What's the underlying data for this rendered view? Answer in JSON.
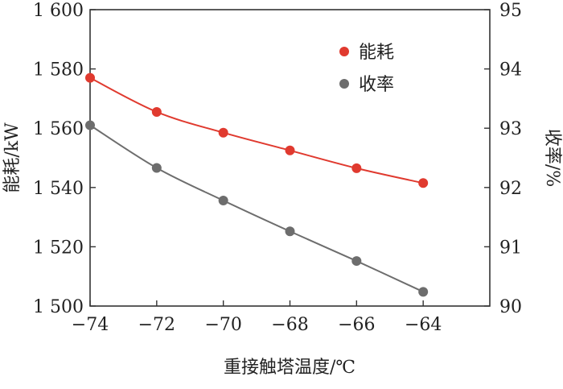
{
  "chart_data": {
    "type": "line",
    "x": [
      -74,
      -72,
      -70,
      -68,
      -66,
      -64
    ],
    "xlim": [
      -74,
      -62
    ],
    "xticks": [
      -74,
      -72,
      -70,
      -68,
      -66,
      -64
    ],
    "xtick_labels": [
      "−74",
      "−72",
      "−70",
      "−68",
      "−66",
      "−64"
    ],
    "xlabel": "重接触塔温度/℃",
    "ylabel_left": "能耗/kW",
    "ylabel_right": "收率/%",
    "ylim_left": [
      1500,
      1600
    ],
    "ylim_right": [
      90,
      95
    ],
    "yticks_left": [
      1500,
      1520,
      1540,
      1560,
      1580,
      1600
    ],
    "ytick_labels_left": [
      "1 500",
      "1 520",
      "1 540",
      "1 560",
      "1 580",
      "1 600"
    ],
    "yticks_right": [
      90,
      91,
      92,
      93,
      94,
      95
    ],
    "ytick_labels_right": [
      "90",
      "91",
      "92",
      "93",
      "94",
      "95"
    ],
    "grid": false,
    "legend_position": "top-right",
    "series": [
      {
        "name": "能耗",
        "axis": "left",
        "color": "#e03a2f",
        "values": [
          1577,
          1565.5,
          1558.5,
          1552.5,
          1546.5,
          1541.5
        ]
      },
      {
        "name": "收率",
        "axis": "right",
        "color": "#6d6d6d",
        "values": [
          93.05,
          92.33,
          91.78,
          91.26,
          90.76,
          90.24
        ]
      }
    ]
  }
}
